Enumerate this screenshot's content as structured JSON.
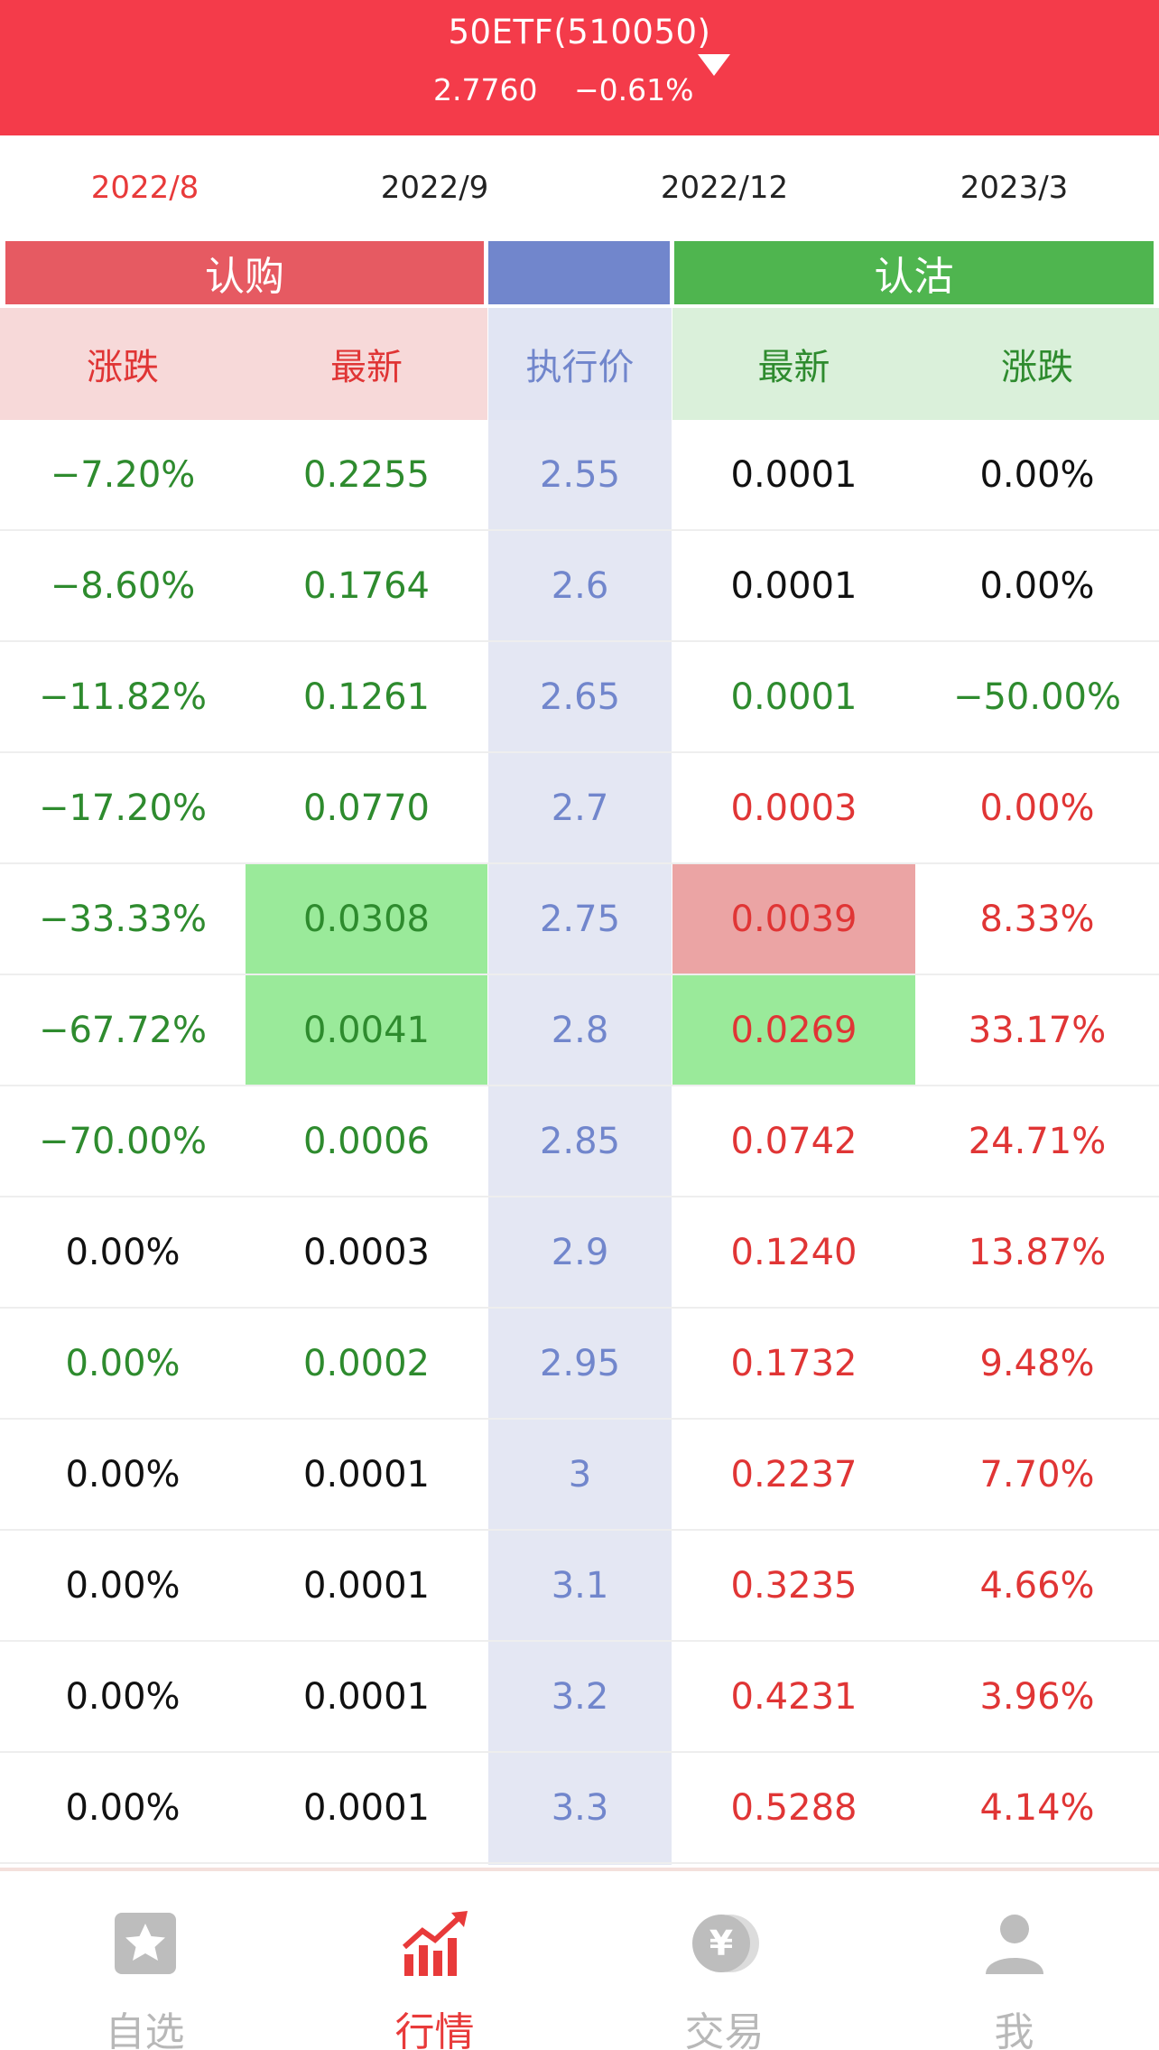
{
  "header": {
    "title": "50ETF(510050)",
    "price": "2.7760",
    "change": "−0.61%"
  },
  "tabs": [
    {
      "label": "2022/8",
      "active": true
    },
    {
      "label": "2022/9",
      "active": false
    },
    {
      "label": "2022/12",
      "active": false
    },
    {
      "label": "2023/3",
      "active": false
    }
  ],
  "sections": {
    "call": "认购",
    "mid": "",
    "put": "认沽"
  },
  "columns": {
    "call_change": "涨跌",
    "call_latest": "最新",
    "strike": "执行价",
    "put_latest": "最新",
    "put_change": "涨跌"
  },
  "rows": [
    {
      "call_change": "−7.20%",
      "call_latest": "0.2255",
      "strike": "2.55",
      "put_latest": "0.0001",
      "put_change": "0.00%"
    },
    {
      "call_change": "−8.60%",
      "call_latest": "0.1764",
      "strike": "2.6",
      "put_latest": "0.0001",
      "put_change": "0.00%"
    },
    {
      "call_change": "−11.82%",
      "call_latest": "0.1261",
      "strike": "2.65",
      "put_latest": "0.0001",
      "put_change": "−50.00%"
    },
    {
      "call_change": "−17.20%",
      "call_latest": "0.0770",
      "strike": "2.7",
      "put_latest": "0.0003",
      "put_change": "0.00%"
    },
    {
      "call_change": "−33.33%",
      "call_latest": "0.0308",
      "strike": "2.75",
      "put_latest": "0.0039",
      "put_change": "8.33%"
    },
    {
      "call_change": "−67.72%",
      "call_latest": "0.0041",
      "strike": "2.8",
      "put_latest": "0.0269",
      "put_change": "33.17%"
    },
    {
      "call_change": "−70.00%",
      "call_latest": "0.0006",
      "strike": "2.85",
      "put_latest": "0.0742",
      "put_change": "24.71%"
    },
    {
      "call_change": "0.00%",
      "call_latest": "0.0003",
      "strike": "2.9",
      "put_latest": "0.1240",
      "put_change": "13.87%"
    },
    {
      "call_change": "0.00%",
      "call_latest": "0.0002",
      "strike": "2.95",
      "put_latest": "0.1732",
      "put_change": "9.48%"
    },
    {
      "call_change": "0.00%",
      "call_latest": "0.0001",
      "strike": "3",
      "put_latest": "0.2237",
      "put_change": "7.70%"
    },
    {
      "call_change": "0.00%",
      "call_latest": "0.0001",
      "strike": "3.1",
      "put_latest": "0.3235",
      "put_change": "4.66%"
    },
    {
      "call_change": "0.00%",
      "call_latest": "0.0001",
      "strike": "3.2",
      "put_latest": "0.4231",
      "put_change": "3.96%"
    },
    {
      "call_change": "0.00%",
      "call_latest": "0.0001",
      "strike": "3.3",
      "put_latest": "0.5288",
      "put_change": "4.14%"
    }
  ],
  "nav": [
    {
      "label": "自选",
      "icon": "star-icon",
      "active": false
    },
    {
      "label": "行情",
      "icon": "chart-trend-icon",
      "active": true
    },
    {
      "label": "交易",
      "icon": "yen-coin-icon",
      "active": false
    },
    {
      "label": "我",
      "icon": "person-icon",
      "active": false
    }
  ],
  "colors": {
    "header": "#f43b4a",
    "call_head": "#e65a62",
    "strike_head": "#7186cc",
    "put_head": "#4fb54f",
    "up": "#e03535",
    "down": "#2e8b2e",
    "highlight_green": "#9aea9a",
    "highlight_red": "#eba4a4"
  }
}
